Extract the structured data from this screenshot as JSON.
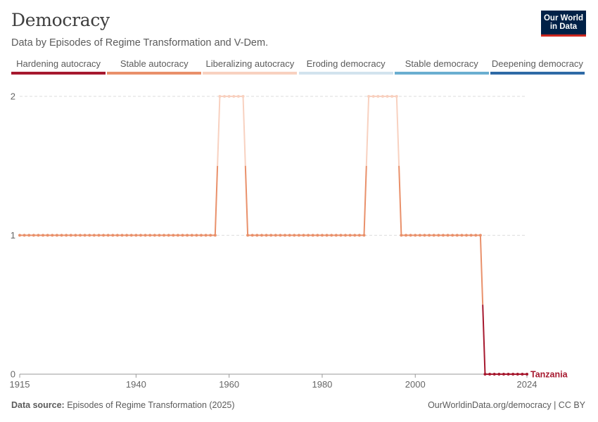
{
  "header": {
    "title": "Democracy",
    "subtitle": "Data by Episodes of Regime Transformation and V-Dem.",
    "logo_line1": "Our World",
    "logo_line2": "in Data"
  },
  "legend": [
    {
      "label": "Hardening autocracy",
      "color": "#a6182e"
    },
    {
      "label": "Stable autocracy",
      "color": "#e9906a"
    },
    {
      "label": "Liberalizing autocracy",
      "color": "#f8d1c0"
    },
    {
      "label": "Eroding democracy",
      "color": "#d2e3ee"
    },
    {
      "label": "Stable democracy",
      "color": "#6aaed0"
    },
    {
      "label": "Deepening democracy",
      "color": "#2e6aa6"
    }
  ],
  "chart_data": {
    "type": "line",
    "title": "Democracy",
    "subtitle": "Data by Episodes of Regime Transformation and V-Dem.",
    "xlabel": "",
    "ylabel": "",
    "xlim": [
      1915,
      2024
    ],
    "ylim": [
      0,
      2
    ],
    "yticks": [
      0,
      1,
      2
    ],
    "xticks": [
      1915,
      1940,
      1960,
      1980,
      2000,
      2024
    ],
    "grid": "horizontal-dashed",
    "legend_placement": "top",
    "series": [
      {
        "name": "Tanzania",
        "label_color": "#a6182e",
        "segments": [
          {
            "start": 1915,
            "end": 1957,
            "value": 1,
            "category": "Stable autocracy"
          },
          {
            "start": 1958,
            "end": 1963,
            "value": 2,
            "category": "Liberalizing autocracy"
          },
          {
            "start": 1964,
            "end": 1989,
            "value": 1,
            "category": "Stable autocracy"
          },
          {
            "start": 1990,
            "end": 1996,
            "value": 2,
            "category": "Liberalizing autocracy"
          },
          {
            "start": 1997,
            "end": 2014,
            "value": 1,
            "category": "Stable autocracy"
          },
          {
            "start": 2015,
            "end": 2024,
            "value": 0,
            "category": "Hardening autocracy"
          }
        ]
      }
    ]
  },
  "footer": {
    "source_label": "Data source:",
    "source_text": "Episodes of Regime Transformation (2025)",
    "right_text": "OurWorldinData.org/democracy | CC BY"
  }
}
